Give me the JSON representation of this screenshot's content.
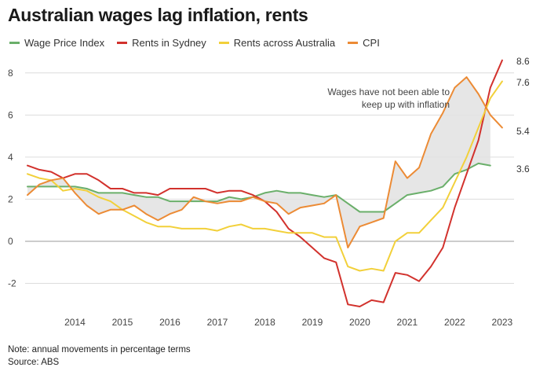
{
  "title": "Australian wages lag inflation, rents",
  "note": "Note: annual movements in percentage terms",
  "source": "Source: ABS",
  "chart_data": {
    "type": "line",
    "title": "Australian wages lag inflation, rents",
    "xlabel": "",
    "ylabel": "",
    "ylim": [
      -3.4,
      9
    ],
    "xlim": [
      2013.55,
      2023.75
    ],
    "y_ticks": [
      -2,
      0,
      2,
      4,
      6,
      8
    ],
    "x_ticks": [
      "2014",
      "2015",
      "2016",
      "2017",
      "2018",
      "2019",
      "2020",
      "2021",
      "2022",
      "2023"
    ],
    "grid": true,
    "legend": "top-left",
    "shading": "area between Wage Price Index and CPI shaded light grey",
    "annotation": [
      "Wages have not been able to",
      "keep up with inflation"
    ],
    "end_labels": [
      "8.6",
      "7.6",
      "5.4",
      "3.6"
    ],
    "series": [
      {
        "name": "Wage Price Index",
        "color": "#6aaf6a",
        "x": [
          2013.5,
          2013.75,
          2014.0,
          2014.25,
          2014.5,
          2014.75,
          2015.0,
          2015.25,
          2015.5,
          2015.75,
          2016.0,
          2016.25,
          2016.5,
          2016.75,
          2017.0,
          2017.25,
          2017.5,
          2017.75,
          2018.0,
          2018.25,
          2018.5,
          2018.75,
          2019.0,
          2019.25,
          2019.5,
          2019.75,
          2020.0,
          2020.25,
          2020.5,
          2020.75,
          2021.0,
          2021.25,
          2021.5,
          2021.75,
          2022.0,
          2022.25,
          2022.5,
          2022.75,
          2023.0,
          2023.25
        ],
        "values": [
          2.6,
          2.6,
          2.6,
          2.6,
          2.6,
          2.5,
          2.3,
          2.3,
          2.3,
          2.2,
          2.1,
          2.1,
          1.9,
          1.9,
          1.9,
          1.9,
          1.9,
          2.1,
          2.0,
          2.1,
          2.3,
          2.4,
          2.3,
          2.3,
          2.2,
          2.1,
          2.2,
          1.8,
          1.4,
          1.4,
          1.4,
          1.8,
          2.2,
          2.3,
          2.4,
          2.6,
          3.2,
          3.4,
          3.7,
          3.6
        ]
      },
      {
        "name": "Rents in Sydney",
        "color": "#d2322d",
        "x": [
          2013.5,
          2013.75,
          2014.0,
          2014.25,
          2014.5,
          2014.75,
          2015.0,
          2015.25,
          2015.5,
          2015.75,
          2016.0,
          2016.25,
          2016.5,
          2016.75,
          2017.0,
          2017.25,
          2017.5,
          2017.75,
          2018.0,
          2018.25,
          2018.5,
          2018.75,
          2019.0,
          2019.25,
          2019.5,
          2019.75,
          2020.0,
          2020.25,
          2020.5,
          2020.75,
          2021.0,
          2021.25,
          2021.5,
          2021.75,
          2022.0,
          2022.25,
          2022.5,
          2022.75,
          2023.0,
          2023.25,
          2023.5
        ],
        "values": [
          3.6,
          3.4,
          3.3,
          3.0,
          3.2,
          3.2,
          2.9,
          2.5,
          2.5,
          2.3,
          2.3,
          2.2,
          2.5,
          2.5,
          2.5,
          2.5,
          2.3,
          2.4,
          2.4,
          2.2,
          1.9,
          1.4,
          0.6,
          0.2,
          -0.3,
          -0.8,
          -1.0,
          -3.0,
          -3.1,
          -2.8,
          -2.9,
          -1.5,
          -1.6,
          -1.9,
          -1.2,
          -0.3,
          1.6,
          3.2,
          4.8,
          7.3,
          8.6
        ]
      },
      {
        "name": "Rents across Australia",
        "color": "#f2d03a",
        "x": [
          2013.5,
          2013.75,
          2014.0,
          2014.25,
          2014.5,
          2014.75,
          2015.0,
          2015.25,
          2015.5,
          2015.75,
          2016.0,
          2016.25,
          2016.5,
          2016.75,
          2017.0,
          2017.25,
          2017.5,
          2017.75,
          2018.0,
          2018.25,
          2018.5,
          2018.75,
          2019.0,
          2019.25,
          2019.5,
          2019.75,
          2020.0,
          2020.25,
          2020.5,
          2020.75,
          2021.0,
          2021.25,
          2021.5,
          2021.75,
          2022.0,
          2022.25,
          2022.5,
          2022.75,
          2023.0,
          2023.25,
          2023.5
        ],
        "values": [
          3.2,
          3.0,
          2.9,
          2.4,
          2.5,
          2.4,
          2.1,
          1.9,
          1.5,
          1.2,
          0.9,
          0.7,
          0.7,
          0.6,
          0.6,
          0.6,
          0.5,
          0.7,
          0.8,
          0.6,
          0.6,
          0.5,
          0.4,
          0.4,
          0.4,
          0.2,
          0.2,
          -1.2,
          -1.4,
          -1.3,
          -1.4,
          0.0,
          0.4,
          0.4,
          1.0,
          1.6,
          2.8,
          4.0,
          5.4,
          6.8,
          7.6
        ]
      },
      {
        "name": "CPI",
        "color": "#ec8b35",
        "x": [
          2013.5,
          2013.75,
          2014.0,
          2014.25,
          2014.5,
          2014.75,
          2015.0,
          2015.25,
          2015.5,
          2015.75,
          2016.0,
          2016.25,
          2016.5,
          2016.75,
          2017.0,
          2017.25,
          2017.5,
          2017.75,
          2018.0,
          2018.25,
          2018.5,
          2018.75,
          2019.0,
          2019.25,
          2019.5,
          2019.75,
          2020.0,
          2020.25,
          2020.5,
          2020.75,
          2021.0,
          2021.25,
          2021.5,
          2021.75,
          2022.0,
          2022.25,
          2022.5,
          2022.75,
          2023.0,
          2023.25,
          2023.5
        ],
        "values": [
          2.2,
          2.7,
          2.9,
          3.0,
          2.3,
          1.7,
          1.3,
          1.5,
          1.5,
          1.7,
          1.3,
          1.0,
          1.3,
          1.5,
          2.1,
          1.9,
          1.8,
          1.9,
          1.9,
          2.1,
          1.9,
          1.8,
          1.3,
          1.6,
          1.7,
          1.8,
          2.2,
          -0.3,
          0.7,
          0.9,
          1.1,
          3.8,
          3.0,
          3.5,
          5.1,
          6.1,
          7.3,
          7.8,
          7.0,
          6.0,
          5.4
        ]
      }
    ]
  }
}
